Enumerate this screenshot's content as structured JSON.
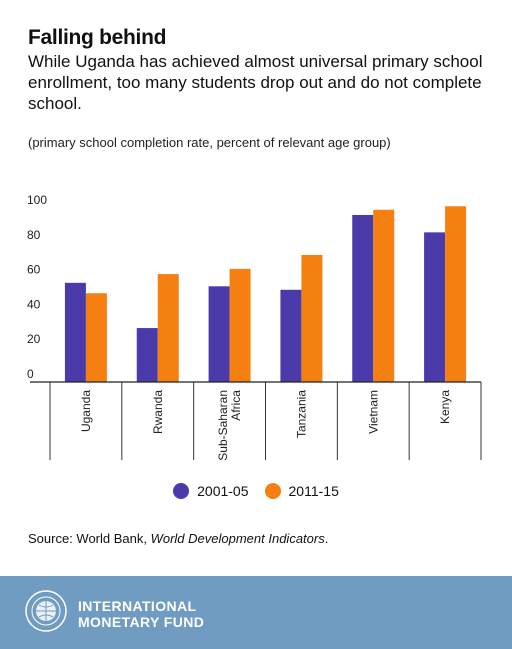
{
  "header": {
    "title": "Falling behind",
    "subtitle": "While Uganda has achieved almost universal primary school enrollment, too many students drop out and do not complete school.",
    "unit_note": "(primary school completion rate, percent of relevant age group)"
  },
  "colors": {
    "series_a": "#4b3aa9",
    "series_b": "#f57f10",
    "footer": "#6f9cc0"
  },
  "chart_data": {
    "type": "bar",
    "title": "",
    "xlabel": "",
    "ylabel": "",
    "ylim": [
      0,
      100
    ],
    "yticks": [
      0,
      20,
      40,
      60,
      80,
      100
    ],
    "categories": [
      "Uganda",
      "Rwanda",
      "Sub-Saharan Africa",
      "Tanzania",
      "Vietnam",
      "Kenya"
    ],
    "series": [
      {
        "name": "2001-05",
        "values": [
          57,
          31,
          55,
          53,
          96,
          86
        ]
      },
      {
        "name": "2011-15",
        "values": [
          51,
          62,
          65,
          73,
          99,
          101
        ]
      }
    ],
    "grid": false,
    "legend": "bottom-center"
  },
  "legend": {
    "items": [
      "2001-05",
      "2011-15"
    ]
  },
  "source": {
    "prefix": "Source: World Bank, ",
    "italic": "World Development Indicators",
    "suffix": "."
  },
  "footer": {
    "org_line1": "INTERNATIONAL",
    "org_line2": "MONETARY FUND",
    "seal_icon": "imf-seal-icon"
  }
}
